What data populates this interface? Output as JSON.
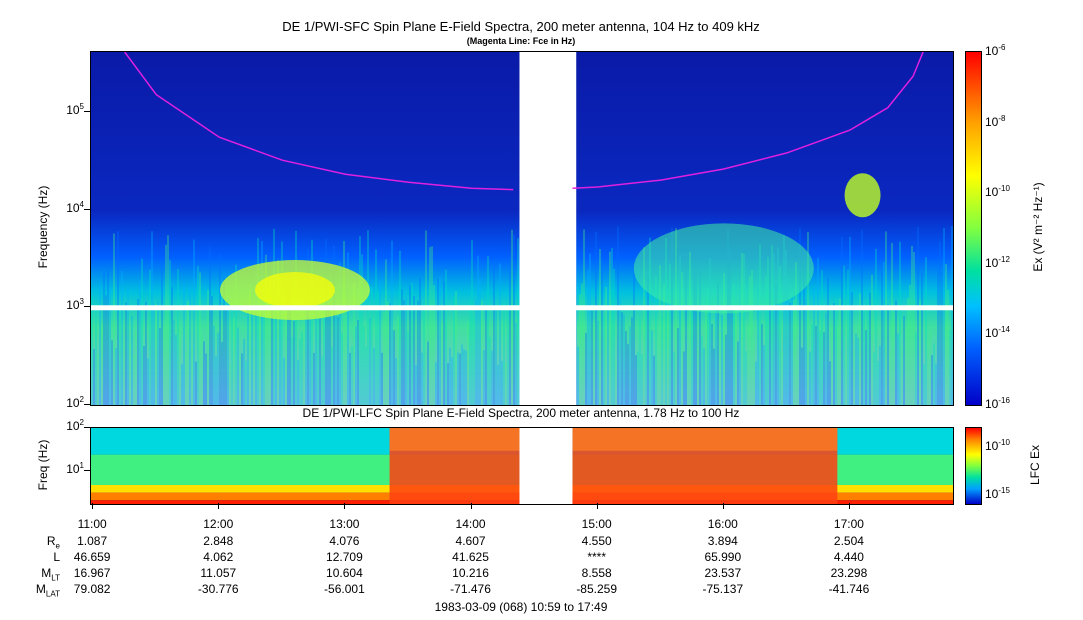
{
  "chart_data": [
    {
      "type": "heatmap",
      "title": "DE 1/PWI-SFC  Spin Plane E-Field Spectra, 200 meter antenna, 104 Hz to 409 kHz",
      "subtitle": "(Magenta Line: Fce in Hz)",
      "ylabel": "Frequency (Hz)",
      "yscale": "log",
      "ylim": [
        100,
        409000
      ],
      "yticks": [
        {
          "value": 100,
          "base": "10",
          "exp": "2"
        },
        {
          "value": 1000,
          "base": "10",
          "exp": "3"
        },
        {
          "value": 10000,
          "base": "10",
          "exp": "4"
        },
        {
          "value": 100000,
          "base": "10",
          "exp": "5"
        }
      ],
      "colorbar": {
        "label": "Ex (V² m⁻² Hz⁻¹)",
        "scale": "log",
        "range": [
          1e-16,
          1e-06
        ],
        "ticks": [
          {
            "value": 1e-06,
            "base": "10",
            "exp": "-6"
          },
          {
            "value": 1e-08,
            "base": "10",
            "exp": "-8"
          },
          {
            "value": 1e-10,
            "base": "10",
            "exp": "-10"
          },
          {
            "value": 1e-12,
            "base": "10",
            "exp": "-12"
          },
          {
            "value": 1e-14,
            "base": "10",
            "exp": "-14"
          },
          {
            "value": 1e-16,
            "base": "10",
            "exp": "-16"
          }
        ]
      },
      "fce_line": {
        "color": "#e020e0",
        "segments": [
          {
            "t": [
              11.25,
              11.5,
              12.0,
              12.5,
              13.0,
              13.5,
              14.0,
              14.33
            ],
            "f": [
              409000,
              150000,
              55000,
              32000,
              23000,
              19000,
              16500,
              16000
            ]
          },
          {
            "t": [
              14.8,
              15.0,
              15.5,
              16.0,
              16.5,
              17.0,
              17.3,
              17.5,
              17.58
            ],
            "f": [
              16500,
              17000,
              20000,
              26000,
              38000,
              65000,
              110000,
              230000,
              409000
            ]
          }
        ]
      },
      "data_gap": {
        "t": [
          14.38,
          14.83
        ]
      },
      "band_gap_hz": 1000
    },
    {
      "type": "heatmap",
      "title": "DE 1/PWI-LFC  Spin Plane E-Field Spectra, 200 meter antenna, 1.78 Hz to 100 Hz",
      "ylabel": "Freq (Hz)",
      "yscale": "log",
      "ylim": [
        1.78,
        100
      ],
      "yticks": [
        {
          "value": 10,
          "base": "10",
          "exp": "1"
        },
        {
          "value": 100,
          "base": "10",
          "exp": "2"
        }
      ],
      "colorbar": {
        "label": "LFC Ex",
        "scale": "log",
        "range": [
          1e-16,
          1e-08
        ],
        "ticks": [
          {
            "value": 1e-10,
            "base": "10",
            "exp": "-10"
          },
          {
            "value": 1e-15,
            "base": "10",
            "exp": "-15"
          }
        ]
      },
      "data_gap": {
        "t": [
          14.38,
          14.8
        ]
      }
    }
  ],
  "time_axis": {
    "start_hour": 10.983,
    "end_hour": 17.817,
    "ticks": [
      {
        "hour": 11,
        "label": "11:00"
      },
      {
        "hour": 12,
        "label": "12:00"
      },
      {
        "hour": 13,
        "label": "13:00"
      },
      {
        "hour": 14,
        "label": "14:00"
      },
      {
        "hour": 15,
        "label": "15:00"
      },
      {
        "hour": 16,
        "label": "16:00"
      },
      {
        "hour": 17,
        "label": "17:00"
      }
    ]
  },
  "ephemeris": [
    {
      "label": "R",
      "sub": "e",
      "values": [
        "1.087",
        "2.848",
        "4.076",
        "4.607",
        "4.550",
        "3.894",
        "2.504"
      ]
    },
    {
      "label": "L",
      "sub": "",
      "values": [
        "46.659",
        "4.062",
        "12.709",
        "41.625",
        "****",
        "65.990",
        "4.440"
      ]
    },
    {
      "label": "M",
      "sub": "LT",
      "values": [
        "16.967",
        "11.057",
        "10.604",
        "10.216",
        "8.558",
        "23.537",
        "23.298"
      ]
    },
    {
      "label": "M",
      "sub": "LAT",
      "values": [
        "79.082",
        "-30.776",
        "-56.001",
        "-71.476",
        "-85.259",
        "-75.137",
        "-41.746"
      ]
    }
  ],
  "footer": "1983-03-09 (068) 10:59 to 17:49"
}
